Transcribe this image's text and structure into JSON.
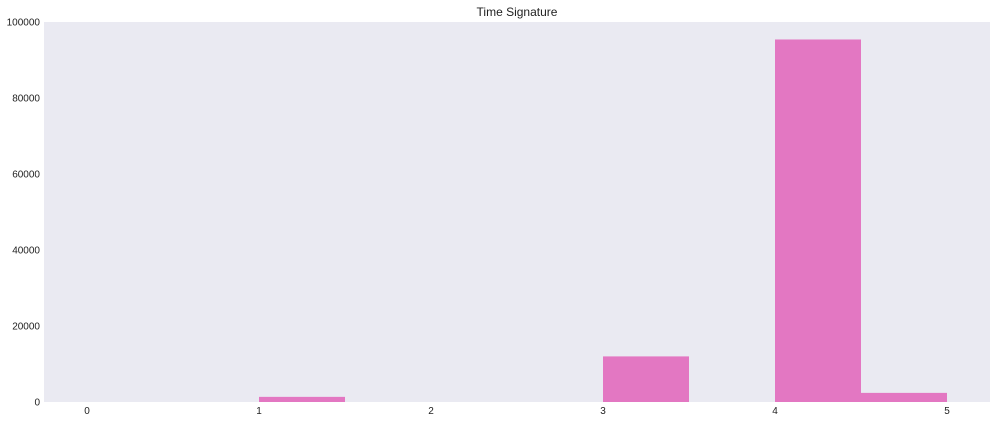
{
  "chart_data": {
    "type": "bar",
    "title": "Time Signature",
    "xlabel": "",
    "ylabel": "",
    "xlim": [
      -0.25,
      5.25
    ],
    "ylim": [
      0,
      100000
    ],
    "xticks": [
      0,
      1,
      2,
      3,
      4,
      5
    ],
    "yticks": [
      0,
      20000,
      40000,
      60000,
      80000,
      100000
    ],
    "grid": false,
    "bar_color": "#e377c2",
    "background_color": "#eaeaf2",
    "bins": [
      {
        "x0": 0.0,
        "x1": 0.5,
        "value": 0
      },
      {
        "x0": 0.5,
        "x1": 1.0,
        "value": 0
      },
      {
        "x0": 1.0,
        "x1": 1.5,
        "value": 1350
      },
      {
        "x0": 1.5,
        "x1": 2.0,
        "value": 0
      },
      {
        "x0": 2.0,
        "x1": 2.5,
        "value": 0
      },
      {
        "x0": 2.5,
        "x1": 3.0,
        "value": 0
      },
      {
        "x0": 3.0,
        "x1": 3.5,
        "value": 12000
      },
      {
        "x0": 3.5,
        "x1": 4.0,
        "value": 0
      },
      {
        "x0": 4.0,
        "x1": 4.5,
        "value": 95400
      },
      {
        "x0": 4.5,
        "x1": 5.0,
        "value": 2400
      }
    ]
  }
}
